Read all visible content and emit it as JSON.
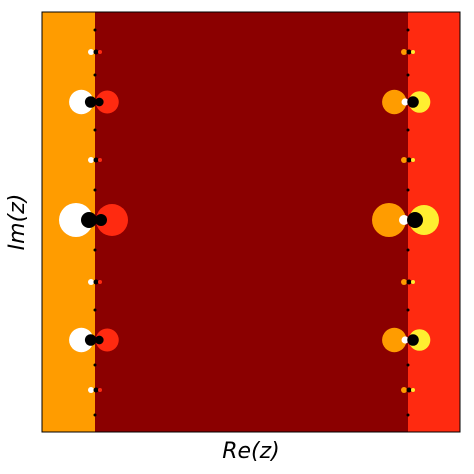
{
  "chart_data": {
    "type": "image",
    "xlabel": "Re(z)",
    "ylabel": "Im(z)"
  }
}
